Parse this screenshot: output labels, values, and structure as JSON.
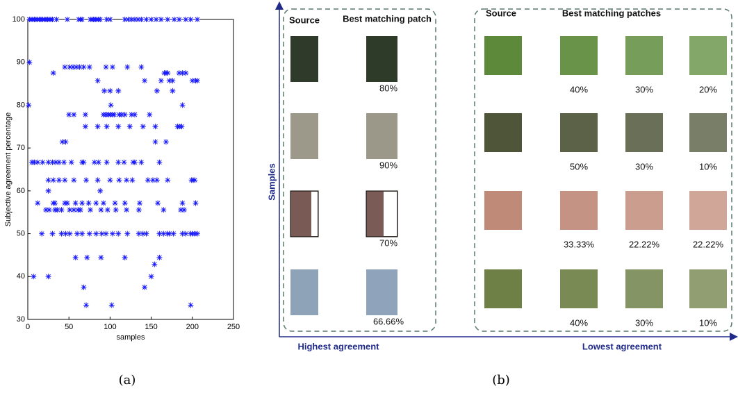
{
  "chart_data": {
    "type": "scatter",
    "xlabel": "samples",
    "ylabel": "Subjective agreement percentage",
    "xlim": [
      0,
      250
    ],
    "xticks": [
      0,
      50,
      100,
      150,
      200,
      250
    ],
    "ylim": [
      30,
      100
    ],
    "yticks": [
      30,
      40,
      50,
      60,
      70,
      80,
      90,
      100
    ],
    "color": "#1a1aff",
    "grid": false,
    "x": [
      2,
      4,
      6,
      8,
      10,
      12,
      14,
      16,
      18,
      20,
      22,
      24,
      26,
      28,
      30,
      35,
      48,
      62,
      64,
      66,
      76,
      78,
      80,
      82,
      84,
      86,
      88,
      96,
      100,
      118,
      122,
      126,
      130,
      134,
      138,
      144,
      150,
      156,
      162,
      170,
      178,
      184,
      192,
      198,
      206,
      2,
      45,
      51,
      55,
      59,
      63,
      68,
      75,
      95,
      103,
      121,
      138,
      31,
      166,
      168,
      170,
      184,
      188,
      192,
      85,
      142,
      162,
      172,
      176,
      200,
      204,
      206,
      93,
      100,
      110,
      157,
      176,
      1,
      101,
      188,
      50,
      56,
      70,
      92,
      95,
      98,
      100,
      103,
      105,
      111,
      114,
      118,
      126,
      130,
      148,
      70,
      85,
      96,
      110,
      124,
      140,
      155,
      182,
      184,
      187,
      42,
      46,
      155,
      168,
      5,
      8,
      12,
      18,
      25,
      30,
      34,
      38,
      44,
      53,
      66,
      68,
      81,
      86,
      96,
      110,
      117,
      128,
      130,
      138,
      160,
      25,
      31,
      38,
      45,
      56,
      71,
      85,
      100,
      111,
      120,
      127,
      146,
      152,
      157,
      170,
      199,
      201,
      203,
      25,
      88,
      12,
      31,
      33,
      45,
      48,
      58,
      66,
      74,
      83,
      92,
      106,
      118,
      136,
      158,
      188,
      204,
      22,
      26,
      33,
      36,
      41,
      51,
      56,
      61,
      64,
      76,
      89,
      97,
      107,
      120,
      135,
      165,
      186,
      190,
      17,
      30,
      41,
      46,
      51,
      60,
      66,
      75,
      83,
      90,
      95,
      103,
      110,
      121,
      135,
      140,
      144,
      160,
      165,
      170,
      172,
      177,
      188,
      192,
      198,
      200,
      203,
      206,
      58,
      72,
      89,
      118,
      160,
      154,
      7,
      25,
      150,
      68,
      142,
      71,
      102,
      198
    ],
    "values": [
      100,
      100,
      100,
      100,
      100,
      100,
      100,
      100,
      100,
      100,
      100,
      100,
      100,
      100,
      100,
      100,
      100,
      100,
      100,
      100,
      100,
      100,
      100,
      100,
      100,
      100,
      100,
      100,
      100,
      100,
      100,
      100,
      100,
      100,
      100,
      100,
      100,
      100,
      100,
      100,
      100,
      100,
      100,
      100,
      100,
      90,
      88.89,
      88.89,
      88.89,
      88.89,
      88.89,
      88.89,
      88.89,
      88.89,
      88.89,
      88.89,
      88.89,
      87.5,
      87.5,
      87.5,
      87.5,
      87.5,
      87.5,
      87.5,
      85.71,
      85.71,
      85.71,
      85.71,
      85.71,
      85.71,
      85.71,
      85.71,
      83.33,
      83.33,
      83.33,
      83.33,
      83.33,
      80,
      80,
      80,
      77.78,
      77.78,
      77.78,
      77.78,
      77.78,
      77.78,
      77.78,
      77.78,
      77.78,
      77.78,
      77.78,
      77.78,
      77.78,
      77.78,
      77.78,
      75,
      75,
      75,
      75,
      75,
      75,
      75,
      75,
      75,
      75,
      71.43,
      71.43,
      71.43,
      71.43,
      66.67,
      66.67,
      66.67,
      66.67,
      66.67,
      66.67,
      66.67,
      66.67,
      66.67,
      66.67,
      66.67,
      66.67,
      66.67,
      66.67,
      66.67,
      66.67,
      66.67,
      66.67,
      66.67,
      66.67,
      66.67,
      62.5,
      62.5,
      62.5,
      62.5,
      62.5,
      62.5,
      62.5,
      62.5,
      62.5,
      62.5,
      62.5,
      62.5,
      62.5,
      62.5,
      62.5,
      62.5,
      62.5,
      62.5,
      60,
      60,
      57.14,
      57.14,
      57.14,
      57.14,
      57.14,
      57.14,
      57.14,
      57.14,
      57.14,
      57.14,
      57.14,
      57.14,
      57.14,
      57.14,
      57.14,
      57.14,
      55.56,
      55.56,
      55.56,
      55.56,
      55.56,
      55.56,
      55.56,
      55.56,
      55.56,
      55.56,
      55.56,
      55.56,
      55.56,
      55.56,
      55.56,
      55.56,
      55.56,
      55.56,
      50,
      50,
      50,
      50,
      50,
      50,
      50,
      50,
      50,
      50,
      50,
      50,
      50,
      50,
      50,
      50,
      50,
      50,
      50,
      50,
      50,
      50,
      50,
      50,
      50,
      50,
      50,
      50,
      44.44,
      44.44,
      44.44,
      44.44,
      44.44,
      42.86,
      40,
      40,
      40,
      37.5,
      37.5,
      33.33,
      33.33,
      33.33
    ]
  },
  "panel_b": {
    "axis_label": "Samples",
    "left_label": "Highest agreement",
    "right_label": "Lowest agreement",
    "left_box": {
      "source_header": "Source",
      "match_header": "Best matching patch",
      "percentages": [
        "80%",
        "90%",
        "70%",
        "66.66%"
      ]
    },
    "right_box": {
      "source_header": "Source",
      "match_header": "Best matching patches",
      "percentages": [
        [
          "40%",
          "30%",
          "20%"
        ],
        [
          "50%",
          "30%",
          "10%"
        ],
        [
          "33.33%",
          "22.22%",
          "22.22%"
        ],
        [
          "40%",
          "30%",
          "10%"
        ]
      ]
    }
  },
  "captions": [
    "(a)",
    "(b)"
  ]
}
